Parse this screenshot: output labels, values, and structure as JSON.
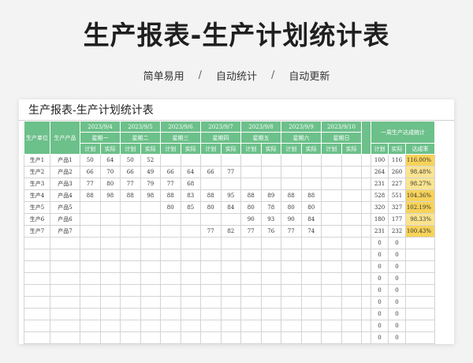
{
  "banner": {
    "title": "生产报表-生产计划统计表",
    "tags": [
      "简单易用",
      "自动统计",
      "自动更新"
    ],
    "separator": "/"
  },
  "sheet": {
    "title": "生产报表-生产计划统计表",
    "header": {
      "unit": "生产单位",
      "product": "生产产品",
      "dates": [
        "2023/9/4",
        "2023/9/5",
        "2023/9/6",
        "2023/9/7",
        "2023/9/8",
        "2023/9/9",
        "2023/9/10"
      ],
      "weekdays": [
        "星期一",
        "星期二",
        "星期三",
        "星期四",
        "星期五",
        "星期六",
        "星期日"
      ],
      "plan": "计划",
      "actual": "实际",
      "weekly_summary": "一周生产达成统计",
      "rate": "达成率"
    },
    "rows": [
      {
        "unit": "生产1",
        "product": "产品1",
        "days": [
          [
            "50",
            "64"
          ],
          [
            "50",
            "52"
          ],
          [
            "",
            ""
          ],
          [
            "",
            ""
          ],
          [
            "",
            ""
          ],
          [
            "",
            ""
          ],
          [
            "",
            ""
          ]
        ],
        "plan_total": "100",
        "actual_total": "116",
        "rate": "116.00%"
      },
      {
        "unit": "生产2",
        "product": "产品2",
        "days": [
          [
            "66",
            "70"
          ],
          [
            "66",
            "49"
          ],
          [
            "66",
            "64"
          ],
          [
            "66",
            "77"
          ],
          [
            "",
            ""
          ],
          [
            "",
            ""
          ],
          [
            "",
            ""
          ]
        ],
        "plan_total": "264",
        "actual_total": "260",
        "rate": "98.48%"
      },
      {
        "unit": "生产3",
        "product": "产品3",
        "days": [
          [
            "77",
            "80"
          ],
          [
            "77",
            "79"
          ],
          [
            "77",
            "68"
          ],
          [
            "",
            ""
          ],
          [
            "",
            ""
          ],
          [
            "",
            ""
          ],
          [
            "",
            ""
          ]
        ],
        "plan_total": "231",
        "actual_total": "227",
        "rate": "98.27%"
      },
      {
        "unit": "生产4",
        "product": "产品4",
        "days": [
          [
            "88",
            "98"
          ],
          [
            "88",
            "98"
          ],
          [
            "88",
            "83"
          ],
          [
            "88",
            "95"
          ],
          [
            "88",
            "89"
          ],
          [
            "88",
            "88"
          ],
          [
            "",
            ""
          ]
        ],
        "plan_total": "528",
        "actual_total": "551",
        "rate": "104.36%"
      },
      {
        "unit": "生产5",
        "product": "产品5",
        "days": [
          [
            "",
            ""
          ],
          [
            "",
            ""
          ],
          [
            "80",
            "85"
          ],
          [
            "80",
            "84"
          ],
          [
            "80",
            "78"
          ],
          [
            "80",
            "80"
          ],
          [
            "",
            ""
          ]
        ],
        "plan_total": "320",
        "actual_total": "327",
        "rate": "102.19%"
      },
      {
        "unit": "生产6",
        "product": "产品6",
        "days": [
          [
            "",
            ""
          ],
          [
            "",
            ""
          ],
          [
            "",
            ""
          ],
          [
            "",
            ""
          ],
          [
            "90",
            "93"
          ],
          [
            "90",
            "84"
          ],
          [
            "",
            ""
          ]
        ],
        "plan_total": "180",
        "actual_total": "177",
        "rate": "98.33%"
      },
      {
        "unit": "生产7",
        "product": "产品7",
        "days": [
          [
            "",
            ""
          ],
          [
            "",
            ""
          ],
          [
            "",
            ""
          ],
          [
            "77",
            "82"
          ],
          [
            "77",
            "76"
          ],
          [
            "77",
            "74"
          ],
          [
            "",
            ""
          ]
        ],
        "plan_total": "231",
        "actual_total": "232",
        "rate": "100.43%"
      },
      {
        "unit": "",
        "product": "",
        "days": [
          [
            "",
            ""
          ],
          [
            "",
            ""
          ],
          [
            "",
            ""
          ],
          [
            "",
            ""
          ],
          [
            "",
            ""
          ],
          [
            "",
            ""
          ],
          [
            "",
            ""
          ]
        ],
        "plan_total": "0",
        "actual_total": "0",
        "rate": ""
      },
      {
        "unit": "",
        "product": "",
        "days": [
          [
            "",
            ""
          ],
          [
            "",
            ""
          ],
          [
            "",
            ""
          ],
          [
            "",
            ""
          ],
          [
            "",
            ""
          ],
          [
            "",
            ""
          ],
          [
            "",
            ""
          ]
        ],
        "plan_total": "0",
        "actual_total": "0",
        "rate": ""
      },
      {
        "unit": "",
        "product": "",
        "days": [
          [
            "",
            ""
          ],
          [
            "",
            ""
          ],
          [
            "",
            ""
          ],
          [
            "",
            ""
          ],
          [
            "",
            ""
          ],
          [
            "",
            ""
          ],
          [
            "",
            ""
          ]
        ],
        "plan_total": "0",
        "actual_total": "0",
        "rate": ""
      },
      {
        "unit": "",
        "product": "",
        "days": [
          [
            "",
            ""
          ],
          [
            "",
            ""
          ],
          [
            "",
            ""
          ],
          [
            "",
            ""
          ],
          [
            "",
            ""
          ],
          [
            "",
            ""
          ],
          [
            "",
            ""
          ]
        ],
        "plan_total": "0",
        "actual_total": "0",
        "rate": ""
      },
      {
        "unit": "",
        "product": "",
        "days": [
          [
            "",
            ""
          ],
          [
            "",
            ""
          ],
          [
            "",
            ""
          ],
          [
            "",
            ""
          ],
          [
            "",
            ""
          ],
          [
            "",
            ""
          ],
          [
            "",
            ""
          ]
        ],
        "plan_total": "0",
        "actual_total": "0",
        "rate": ""
      },
      {
        "unit": "",
        "product": "",
        "days": [
          [
            "",
            ""
          ],
          [
            "",
            ""
          ],
          [
            "",
            ""
          ],
          [
            "",
            ""
          ],
          [
            "",
            ""
          ],
          [
            "",
            ""
          ],
          [
            "",
            ""
          ]
        ],
        "plan_total": "0",
        "actual_total": "0",
        "rate": ""
      },
      {
        "unit": "",
        "product": "",
        "days": [
          [
            "",
            ""
          ],
          [
            "",
            ""
          ],
          [
            "",
            ""
          ],
          [
            "",
            ""
          ],
          [
            "",
            ""
          ],
          [
            "",
            ""
          ],
          [
            "",
            ""
          ]
        ],
        "plan_total": "0",
        "actual_total": "0",
        "rate": ""
      },
      {
        "unit": "",
        "product": "",
        "days": [
          [
            "",
            ""
          ],
          [
            "",
            ""
          ],
          [
            "",
            ""
          ],
          [
            "",
            ""
          ],
          [
            "",
            ""
          ],
          [
            "",
            ""
          ],
          [
            "",
            ""
          ]
        ],
        "plan_total": "0",
        "actual_total": "0",
        "rate": ""
      },
      {
        "unit": "",
        "product": "",
        "days": [
          [
            "",
            ""
          ],
          [
            "",
            ""
          ],
          [
            "",
            ""
          ],
          [
            "",
            ""
          ],
          [
            "",
            ""
          ],
          [
            "",
            ""
          ],
          [
            "",
            ""
          ]
        ],
        "plan_total": "0",
        "actual_total": "0",
        "rate": ""
      }
    ]
  },
  "colors": {
    "header_green": "#6cc08a",
    "rate_highlight": "#fbe48f",
    "rate_strong": "#f8d35a"
  }
}
